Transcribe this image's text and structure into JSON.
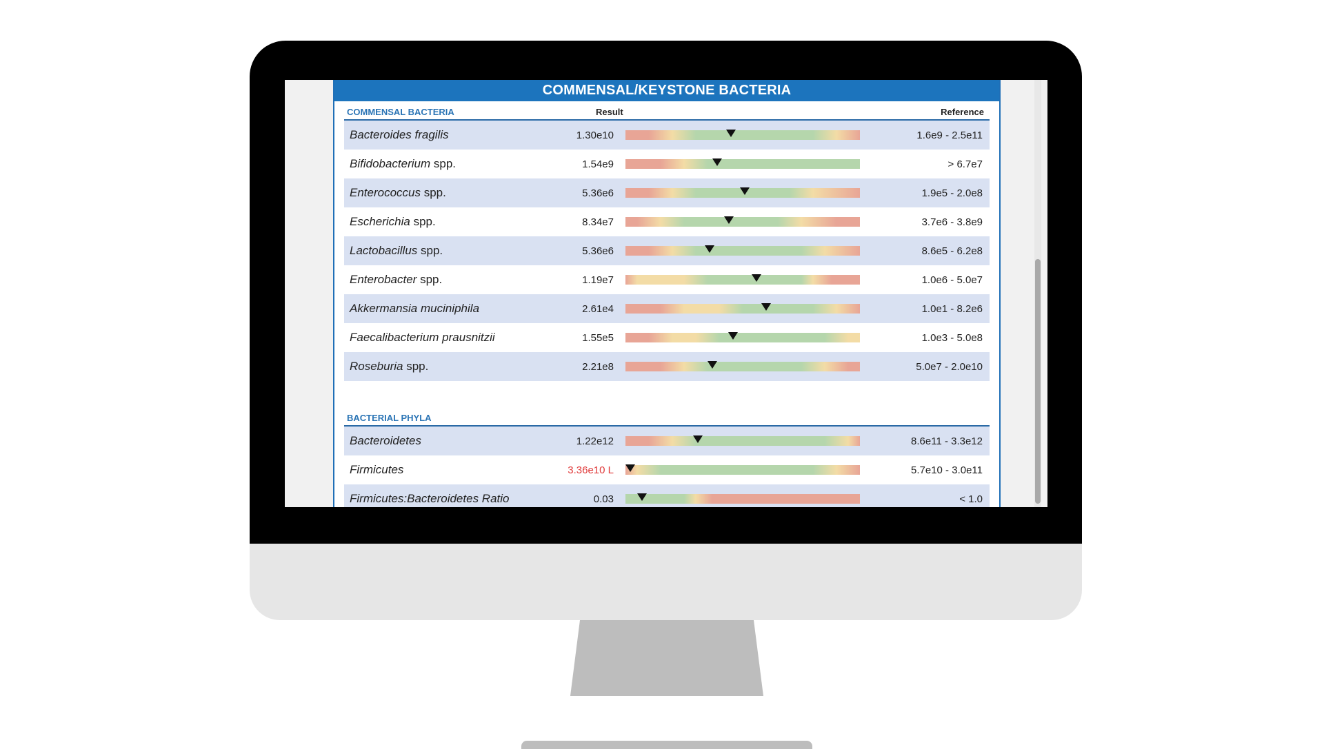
{
  "banner_title": "COMMENSAL/KEYSTONE BACTERIA",
  "colors": {
    "banner": "#1c74bd",
    "red": "#e8a596",
    "yellow": "#f3dca6",
    "green": "#b5d6ac",
    "shaded_row": "#d9e1f2",
    "low_value": "#e03a3a"
  },
  "sections": [
    {
      "title": "COMMENSAL BACTERIA",
      "result_header": "Result",
      "reference_header": "Reference",
      "rows": [
        {
          "name": "Bacteroides fragilis",
          "suffix": "",
          "result": "1.30e10",
          "reference": "1.6e9 - 2.5e11",
          "marker": 0.45,
          "bands": [
            [
              "r",
              0
            ],
            [
              "r",
              0.1
            ],
            [
              "y",
              0.2
            ],
            [
              "g",
              0.3
            ],
            [
              "g",
              0.8
            ],
            [
              "y",
              0.9
            ],
            [
              "r",
              1.0
            ]
          ]
        },
        {
          "name": "Bifidobacterium",
          "suffix": " spp.",
          "result": "1.54e9",
          "reference": "> 6.7e7",
          "marker": 0.39,
          "bands": [
            [
              "r",
              0
            ],
            [
              "r",
              0.15
            ],
            [
              "y",
              0.25
            ],
            [
              "g",
              0.35
            ],
            [
              "g",
              1.0
            ]
          ]
        },
        {
          "name": "Enterococcus",
          "suffix": " spp.",
          "result": "5.36e6",
          "reference": "1.9e5 - 2.0e8",
          "marker": 0.51,
          "bands": [
            [
              "r",
              0
            ],
            [
              "r",
              0.1
            ],
            [
              "y",
              0.2
            ],
            [
              "g",
              0.3
            ],
            [
              "g",
              0.7
            ],
            [
              "y",
              0.8
            ],
            [
              "r",
              1.0
            ]
          ]
        },
        {
          "name": "Escherichia",
          "suffix": "  spp.",
          "result": "8.34e7",
          "reference": "3.7e6 - 3.8e9",
          "marker": 0.44,
          "bands": [
            [
              "r",
              0
            ],
            [
              "r",
              0.05
            ],
            [
              "y",
              0.15
            ],
            [
              "g",
              0.25
            ],
            [
              "g",
              0.65
            ],
            [
              "y",
              0.75
            ],
            [
              "r",
              0.9
            ],
            [
              "r",
              1.0
            ]
          ]
        },
        {
          "name": "Lactobacillus",
          "suffix": " spp.",
          "result": "5.36e6",
          "reference": "8.6e5 - 6.2e8",
          "marker": 0.36,
          "bands": [
            [
              "r",
              0
            ],
            [
              "r",
              0.1
            ],
            [
              "y",
              0.2
            ],
            [
              "g",
              0.3
            ],
            [
              "g",
              0.75
            ],
            [
              "y",
              0.85
            ],
            [
              "r",
              1.0
            ]
          ]
        },
        {
          "name": "Enterobacter",
          "suffix": " spp.",
          "result": "1.19e7",
          "reference": "1.0e6 - 5.0e7",
          "marker": 0.56,
          "bands": [
            [
              "r",
              0
            ],
            [
              "y",
              0.05
            ],
            [
              "y",
              0.25
            ],
            [
              "g",
              0.35
            ],
            [
              "g",
              0.75
            ],
            [
              "y",
              0.8
            ],
            [
              "r",
              0.88
            ],
            [
              "r",
              1.0
            ]
          ]
        },
        {
          "name": "Akkermansia muciniphila",
          "suffix": "",
          "result": "2.61e4",
          "reference": "1.0e1 - 8.2e6",
          "marker": 0.6,
          "bands": [
            [
              "r",
              0
            ],
            [
              "r",
              0.15
            ],
            [
              "y",
              0.25
            ],
            [
              "y",
              0.4
            ],
            [
              "g",
              0.5
            ],
            [
              "g",
              0.8
            ],
            [
              "y",
              0.9
            ],
            [
              "r",
              1.0
            ]
          ]
        },
        {
          "name": "Faecalibacterium prausnitzii",
          "suffix": "",
          "result": "1.55e5",
          "reference": "1.0e3 - 5.0e8",
          "marker": 0.46,
          "bands": [
            [
              "r",
              0
            ],
            [
              "r",
              0.1
            ],
            [
              "y",
              0.2
            ],
            [
              "y",
              0.3
            ],
            [
              "g",
              0.4
            ],
            [
              "g",
              0.85
            ],
            [
              "y",
              0.95
            ],
            [
              "y",
              1.0
            ]
          ]
        },
        {
          "name": "Roseburia",
          "suffix": " spp.",
          "result": "2.21e8",
          "reference": "5.0e7 - 2.0e10",
          "marker": 0.37,
          "bands": [
            [
              "r",
              0
            ],
            [
              "r",
              0.15
            ],
            [
              "y",
              0.25
            ],
            [
              "g",
              0.35
            ],
            [
              "g",
              0.75
            ],
            [
              "y",
              0.85
            ],
            [
              "r",
              0.95
            ],
            [
              "r",
              1.0
            ]
          ]
        }
      ]
    },
    {
      "title": "BACTERIAL PHYLA",
      "rows": [
        {
          "name": "Bacteroidetes",
          "suffix": "",
          "result": "1.22e12",
          "reference": "8.6e11 - 3.3e12",
          "marker": 0.31,
          "bands": [
            [
              "r",
              0
            ],
            [
              "r",
              0.1
            ],
            [
              "y",
              0.2
            ],
            [
              "g",
              0.3
            ],
            [
              "g",
              0.85
            ],
            [
              "y",
              0.95
            ],
            [
              "r",
              1.0
            ]
          ]
        },
        {
          "name": "Firmicutes",
          "suffix": "",
          "result": "3.36e10 L",
          "low": true,
          "reference": "5.7e10 - 3.0e11",
          "marker": 0.02,
          "bands": [
            [
              "r",
              0
            ],
            [
              "y",
              0.05
            ],
            [
              "g",
              0.15
            ],
            [
              "g",
              0.8
            ],
            [
              "y",
              0.9
            ],
            [
              "r",
              1.0
            ]
          ]
        },
        {
          "name": "Firmicutes:Bacteroidetes Ratio",
          "suffix": "",
          "result": "0.03",
          "reference": "< 1.0",
          "marker": 0.07,
          "bands": [
            [
              "g",
              0
            ],
            [
              "g",
              0.25
            ],
            [
              "y",
              0.3
            ],
            [
              "r",
              0.37
            ],
            [
              "r",
              1.0
            ]
          ]
        }
      ]
    }
  ]
}
